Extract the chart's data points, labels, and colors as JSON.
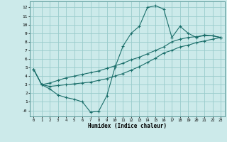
{
  "xlabel": "Humidex (Indice chaleur)",
  "bg_color": "#cceaea",
  "grid_color": "#99cccc",
  "line_color": "#1a6e6a",
  "xlim": [
    -0.5,
    23.5
  ],
  "ylim": [
    -0.7,
    12.7
  ],
  "xticks": [
    0,
    1,
    2,
    3,
    4,
    5,
    6,
    7,
    8,
    9,
    10,
    11,
    12,
    13,
    14,
    15,
    16,
    17,
    18,
    19,
    20,
    21,
    22,
    23
  ],
  "yticks": [
    0,
    1,
    2,
    3,
    4,
    5,
    6,
    7,
    8,
    9,
    10,
    11,
    12
  ],
  "ytick_labels": [
    "-0",
    "1",
    "2",
    "3",
    "4",
    "5",
    "6",
    "7",
    "8",
    "9",
    "10",
    "11",
    "12"
  ],
  "line1_x": [
    0,
    1,
    2,
    3,
    4,
    5,
    6,
    7,
    8,
    9,
    10,
    11,
    12,
    13,
    14,
    15,
    16,
    17,
    18,
    19,
    20,
    21,
    22,
    23
  ],
  "line1_y": [
    4.8,
    3.0,
    2.5,
    1.8,
    1.5,
    1.3,
    1.0,
    -0.2,
    -0.1,
    1.7,
    5.0,
    7.5,
    9.0,
    9.8,
    12.0,
    12.2,
    11.8,
    8.5,
    9.8,
    9.0,
    8.5,
    8.8,
    8.7,
    8.5
  ],
  "line2_x": [
    0,
    1,
    2,
    3,
    4,
    5,
    6,
    7,
    8,
    9,
    10,
    11,
    12,
    13,
    14,
    15,
    16,
    17,
    18,
    19,
    20,
    21,
    22,
    23
  ],
  "line2_y": [
    4.8,
    3.0,
    2.8,
    2.9,
    3.0,
    3.1,
    3.2,
    3.3,
    3.5,
    3.7,
    4.0,
    4.3,
    4.7,
    5.1,
    5.6,
    6.1,
    6.7,
    7.0,
    7.4,
    7.6,
    7.9,
    8.1,
    8.3,
    8.5
  ],
  "line3_x": [
    0,
    1,
    2,
    3,
    4,
    5,
    6,
    7,
    8,
    9,
    10,
    11,
    12,
    13,
    14,
    15,
    16,
    17,
    18,
    19,
    20,
    21,
    22,
    23
  ],
  "line3_y": [
    4.8,
    3.0,
    3.2,
    3.5,
    3.8,
    4.0,
    4.2,
    4.4,
    4.6,
    4.9,
    5.2,
    5.5,
    5.9,
    6.2,
    6.6,
    7.0,
    7.4,
    8.0,
    8.3,
    8.5,
    8.6,
    8.7,
    8.7,
    8.5
  ]
}
